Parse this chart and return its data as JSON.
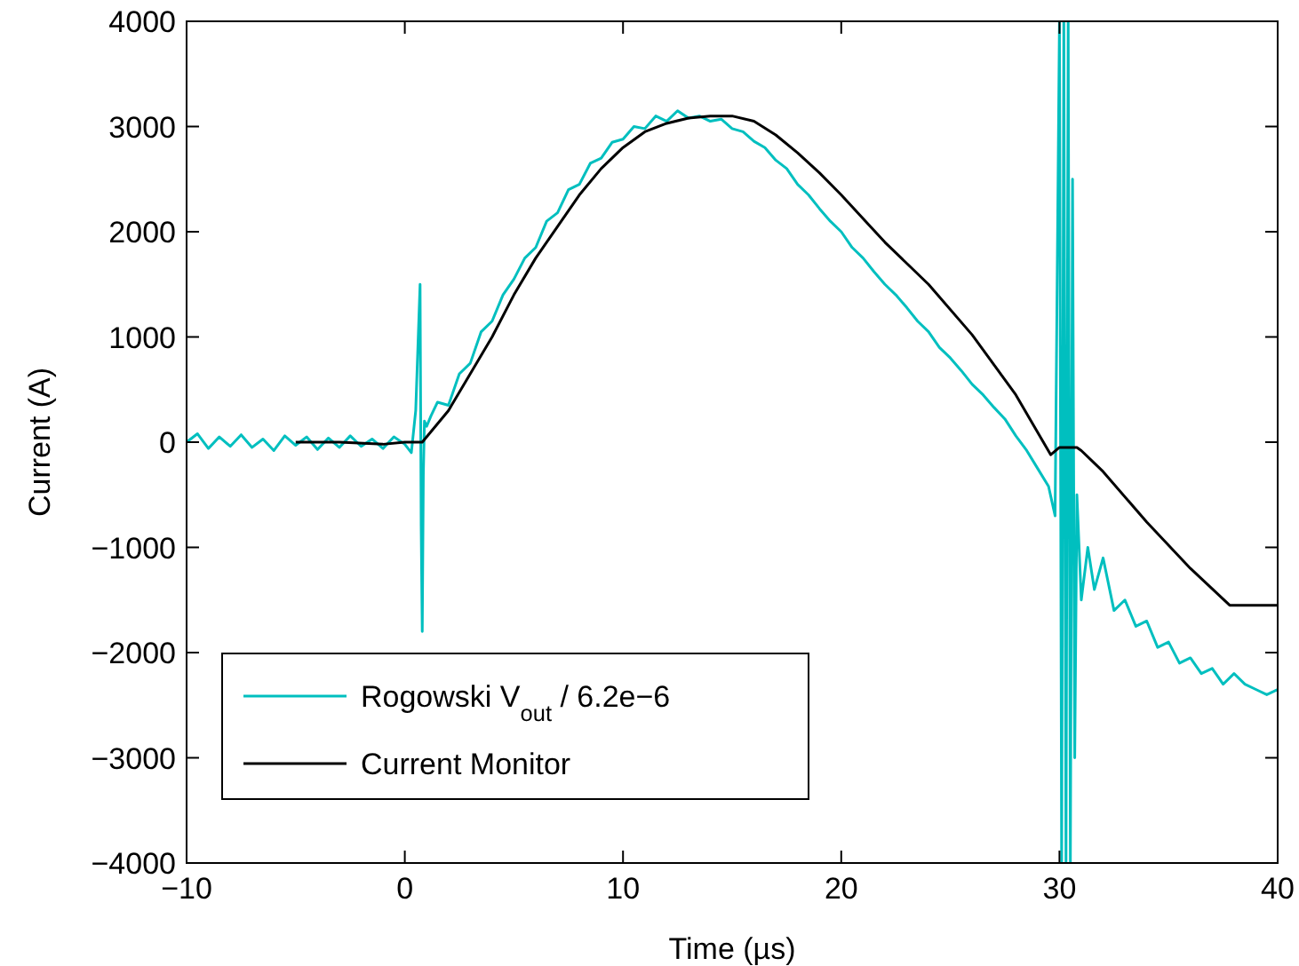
{
  "chart_data": {
    "type": "line",
    "xlabel": "Time (µs)",
    "ylabel": "Current (A)",
    "xlim": [
      -10,
      40
    ],
    "ylim": [
      -4000,
      4000
    ],
    "xticks": [
      -10,
      0,
      10,
      20,
      30,
      40
    ],
    "yticks": [
      -4000,
      -3000,
      -2000,
      -1000,
      0,
      1000,
      2000,
      3000,
      4000
    ],
    "grid": false,
    "legend": "bottom left",
    "marker": "none",
    "line_style": "solid",
    "series": [
      {
        "name": "Rogowski V$_{out}$ / 6.2e−6",
        "color": "#00bfbf",
        "x": [
          -10,
          -9.5,
          -9,
          -8.5,
          -8,
          -7.5,
          -7,
          -6.5,
          -6,
          -5.5,
          -5,
          -4.5,
          -4,
          -3.5,
          -3,
          -2.5,
          -2,
          -1.5,
          -1,
          -0.5,
          0,
          0.3,
          0.5,
          0.6,
          0.7,
          0.75,
          0.8,
          0.85,
          0.9,
          1,
          1.2,
          1.5,
          2,
          2.5,
          3,
          3.5,
          4,
          4.5,
          5,
          5.5,
          6,
          6.5,
          7,
          7.5,
          8,
          8.5,
          9,
          9.5,
          10,
          10.5,
          11,
          11.5,
          12,
          12.5,
          13,
          13.5,
          14,
          14.5,
          15,
          15.5,
          16,
          16.5,
          17,
          17.5,
          18,
          18.5,
          19,
          19.5,
          20,
          20.5,
          21,
          21.5,
          22,
          22.5,
          23,
          23.5,
          24,
          24.5,
          25,
          25.5,
          26,
          26.5,
          27,
          27.5,
          28,
          28.5,
          29,
          29.5,
          29.8,
          30,
          30.1,
          30.2,
          30.3,
          30.4,
          30.5,
          30.6,
          30.7,
          30.8,
          31,
          31.3,
          31.6,
          32,
          32.5,
          33,
          33.5,
          34,
          34.5,
          35,
          35.5,
          36,
          36.5,
          37,
          37.5,
          38,
          38.5,
          39,
          39.5,
          40
        ],
        "values": [
          0,
          80,
          -60,
          50,
          -40,
          70,
          -50,
          30,
          -80,
          60,
          -30,
          50,
          -70,
          40,
          -50,
          60,
          -40,
          30,
          -60,
          50,
          -20,
          -100,
          300,
          900,
          1500,
          -800,
          -1800,
          -300,
          200,
          150,
          250,
          380,
          350,
          650,
          750,
          1050,
          1150,
          1400,
          1550,
          1750,
          1850,
          2100,
          2180,
          2400,
          2450,
          2650,
          2700,
          2850,
          2880,
          3000,
          2980,
          3100,
          3050,
          3150,
          3080,
          3100,
          3050,
          3070,
          2980,
          2950,
          2860,
          2800,
          2680,
          2600,
          2450,
          2350,
          2220,
          2100,
          2000,
          1850,
          1750,
          1620,
          1500,
          1400,
          1280,
          1150,
          1050,
          900,
          800,
          680,
          550,
          450,
          330,
          220,
          60,
          -80,
          -250,
          -420,
          -700,
          4000,
          -4000,
          4000,
          -4000,
          4000,
          -4000,
          2500,
          -3000,
          -500,
          -1500,
          -1000,
          -1400,
          -1100,
          -1600,
          -1500,
          -1750,
          -1700,
          -1950,
          -1900,
          -2100,
          -2050,
          -2200,
          -2150,
          -2300,
          -2200,
          -2300,
          -2350,
          -2400,
          -2350
        ]
      },
      {
        "name": "Current Monitor",
        "color": "#000000",
        "x": [
          -5,
          -3,
          -1,
          0,
          0.8,
          2,
          3,
          4,
          5,
          6,
          7,
          8,
          9,
          10,
          11,
          12,
          13,
          14,
          15,
          16,
          17,
          18,
          19,
          20,
          22,
          24,
          26,
          28,
          29.6,
          30,
          30.8,
          31,
          32,
          34,
          36,
          37.8,
          40
        ],
        "values": [
          0,
          0,
          -20,
          0,
          0,
          300,
          650,
          1000,
          1400,
          1750,
          2050,
          2350,
          2600,
          2800,
          2950,
          3030,
          3080,
          3100,
          3100,
          3050,
          2920,
          2750,
          2560,
          2350,
          1900,
          1500,
          1020,
          450,
          -120,
          -50,
          -50,
          -80,
          -280,
          -760,
          -1200,
          -1550,
          -1550
        ]
      }
    ]
  }
}
